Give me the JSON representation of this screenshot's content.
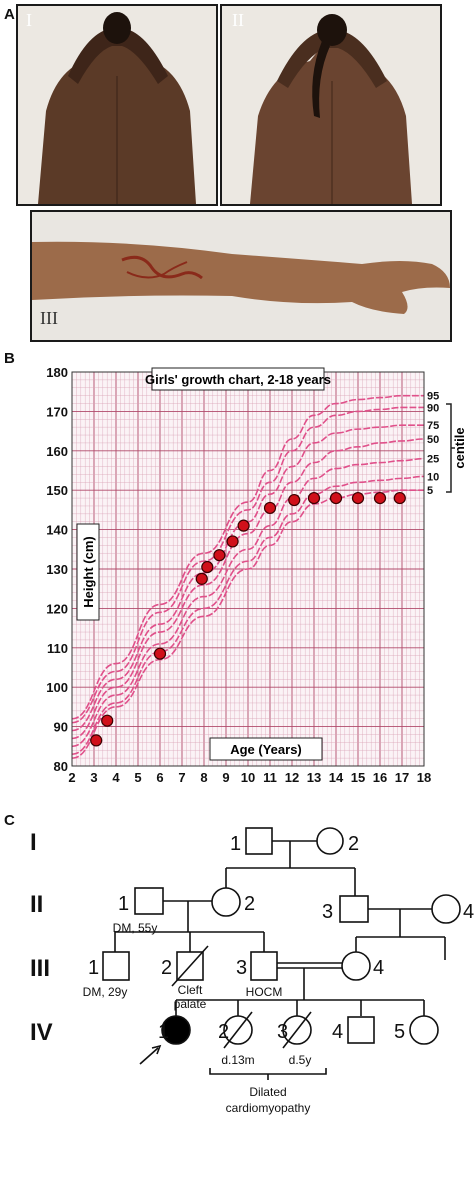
{
  "panels": {
    "A": "A",
    "B": "B",
    "C": "C"
  },
  "photos": {
    "I": "I",
    "II": "II",
    "III": "III"
  },
  "chart_data": {
    "type": "scatter",
    "title": "Girls' growth chart, 2-18 years",
    "xlabel": "Age (Years)",
    "ylabel": "Height (cm)",
    "xlim": [
      2,
      18
    ],
    "ylim": [
      80,
      180
    ],
    "xticks": [
      2,
      3,
      4,
      5,
      6,
      7,
      8,
      9,
      10,
      11,
      12,
      13,
      14,
      15,
      16,
      17,
      18
    ],
    "yticks": [
      80,
      90,
      100,
      110,
      120,
      130,
      140,
      150,
      160,
      170,
      180
    ],
    "grid": true,
    "centile_label": "centile",
    "centiles": [
      {
        "name": "95",
        "x": [
          2,
          4,
          6,
          8,
          10,
          11,
          12,
          13,
          14,
          15,
          16,
          17,
          18
        ],
        "y": [
          92,
          106,
          121,
          134,
          147,
          155,
          163,
          169,
          172,
          173,
          173.5,
          174,
          174
        ]
      },
      {
        "name": "90",
        "x": [
          2,
          4,
          6,
          8,
          10,
          11,
          12,
          13,
          14,
          15,
          16,
          17,
          18
        ],
        "y": [
          91,
          104,
          119,
          132,
          145,
          152,
          160,
          166,
          169,
          170,
          170.5,
          171,
          171
        ]
      },
      {
        "name": "75",
        "x": [
          2,
          4,
          6,
          8,
          10,
          11,
          12,
          13,
          14,
          15,
          16,
          17,
          18
        ],
        "y": [
          89,
          102,
          116,
          129,
          142,
          149,
          156,
          162,
          164.5,
          165.5,
          166,
          166.5,
          166.5
        ]
      },
      {
        "name": "50",
        "x": [
          2,
          4,
          6,
          8,
          10,
          11,
          12,
          13,
          14,
          15,
          16,
          17,
          18
        ],
        "y": [
          87,
          100,
          114,
          126,
          139,
          145,
          152,
          157,
          160,
          161,
          162,
          162.5,
          163
        ]
      },
      {
        "name": "25",
        "x": [
          2,
          4,
          6,
          8,
          10,
          11,
          12,
          13,
          14,
          15,
          16,
          17,
          18
        ],
        "y": [
          85,
          98,
          111,
          123,
          135,
          141,
          148,
          153,
          155.5,
          156.5,
          157,
          157.5,
          158
        ]
      },
      {
        "name": "10",
        "x": [
          2,
          4,
          6,
          8,
          10,
          11,
          12,
          13,
          14,
          15,
          16,
          17,
          18
        ],
        "y": [
          83,
          96,
          109,
          120,
          132,
          138,
          144,
          149,
          151,
          152,
          152.5,
          153,
          153.5
        ]
      },
      {
        "name": "5",
        "x": [
          2,
          4,
          6,
          8,
          10,
          11,
          12,
          13,
          14,
          15,
          16,
          17,
          18
        ],
        "y": [
          82,
          95,
          107,
          118,
          130,
          136,
          142,
          146.5,
          148,
          149,
          149.5,
          150,
          150
        ]
      }
    ],
    "points": {
      "x": [
        3.1,
        3.6,
        6.0,
        7.9,
        8.15,
        8.7,
        9.3,
        9.8,
        11.0,
        12.1,
        13.0,
        14.0,
        15.0,
        16.0,
        16.9
      ],
      "y": [
        86.5,
        91.5,
        108.5,
        127.5,
        130.5,
        133.5,
        137,
        141,
        145.5,
        147.5,
        148,
        148,
        148,
        148,
        148
      ]
    }
  },
  "pedigree": {
    "generations": [
      "I",
      "II",
      "III",
      "IV"
    ],
    "gen_I": {
      "m1": "1",
      "f2": "2"
    },
    "gen_II": {
      "m1": "1",
      "f2": "2",
      "m3": "3",
      "f4": "4",
      "m1_note": "DM, 55y"
    },
    "gen_III": {
      "m1": "1",
      "m2": "2",
      "m3": "3",
      "f4": "4",
      "m1_note": "DM, 29y",
      "m2_note_1": "Cleft",
      "m2_note_2": "palate",
      "m3_note": "HOCM"
    },
    "gen_IV": {
      "n1": "1",
      "n2": "2",
      "n3": "3",
      "n4": "4",
      "n5": "5",
      "n2_note": "d.13m",
      "n3_note": "d.5y",
      "group_note_1": "Dilated",
      "group_note_2": "cardiomyopathy"
    }
  }
}
